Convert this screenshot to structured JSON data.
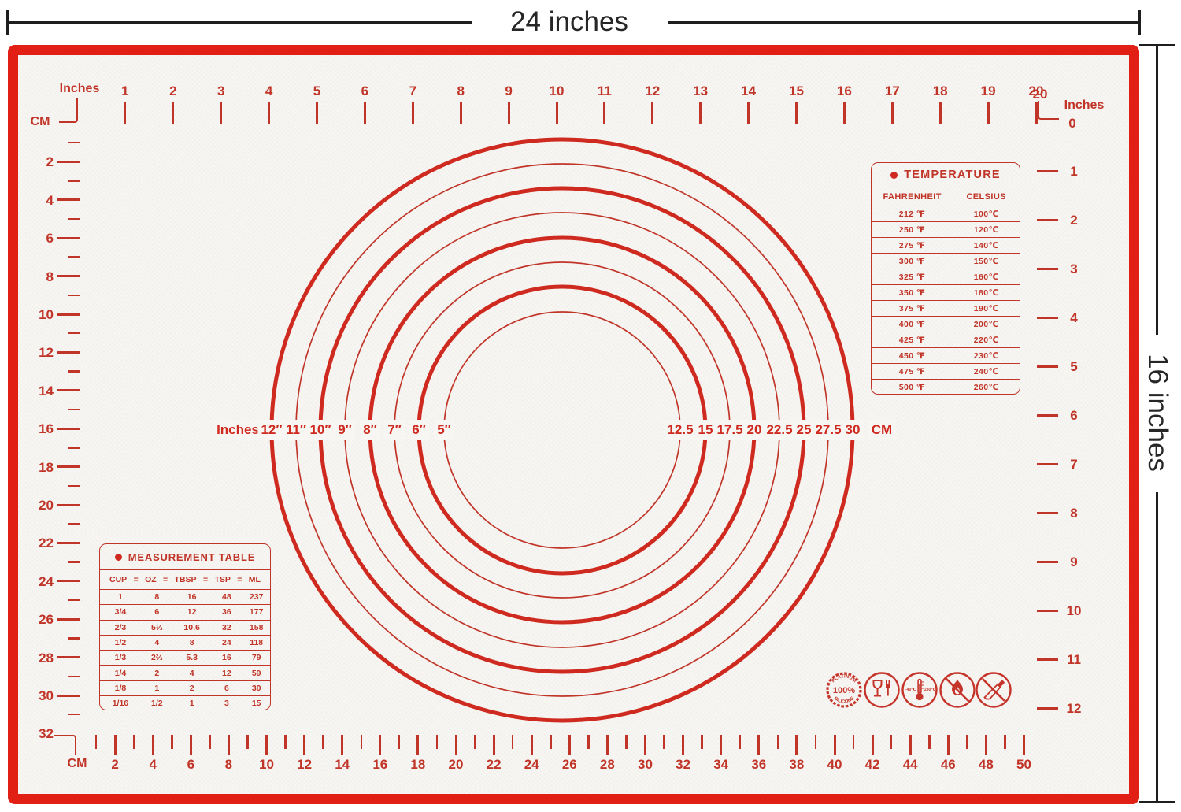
{
  "dimensions": {
    "width_label": "24 inches",
    "height_label": "16 inches"
  },
  "colors": {
    "mat_border": "#e11f14",
    "print_red": "#c13529",
    "accent_red": "#cf2a1f",
    "dimension_black": "#1e1e1e"
  },
  "top_ruler": {
    "unit": "Inches",
    "corner_unit": "CM",
    "labels": [
      "1",
      "2",
      "3",
      "4",
      "5",
      "6",
      "7",
      "8",
      "9",
      "10",
      "11",
      "12",
      "13",
      "14",
      "15",
      "16",
      "17",
      "18",
      "19",
      "20"
    ]
  },
  "left_ruler": {
    "labels": [
      "2",
      "4",
      "6",
      "8",
      "10",
      "12",
      "14",
      "16",
      "18",
      "20",
      "22",
      "24",
      "26",
      "28",
      "30",
      "32"
    ]
  },
  "right_ruler": {
    "end_number": "20",
    "unit": "Inches",
    "zero": "0",
    "labels": [
      "1",
      "2",
      "3",
      "4",
      "5",
      "6",
      "7",
      "8",
      "9",
      "10",
      "11",
      "12"
    ]
  },
  "bottom_ruler": {
    "unit": "CM",
    "labels": [
      "2",
      "4",
      "6",
      "8",
      "10",
      "12",
      "14",
      "16",
      "18",
      "20",
      "22",
      "24",
      "26",
      "28",
      "30",
      "32",
      "34",
      "36",
      "38",
      "40",
      "42",
      "44",
      "46",
      "48",
      "50"
    ]
  },
  "circles": {
    "left_unit": "Inches",
    "right_unit": "CM",
    "rings": [
      {
        "inches": "12″",
        "cm": "30",
        "radius": 369,
        "thick": true
      },
      {
        "inches": "11″",
        "cm": "27.5",
        "radius": 338,
        "thick": false
      },
      {
        "inches": "10″",
        "cm": "25",
        "radius": 307,
        "thick": true
      },
      {
        "inches": "9″",
        "cm": "22.5",
        "radius": 276,
        "thick": false
      },
      {
        "inches": "8″",
        "cm": "20",
        "radius": 244,
        "thick": true
      },
      {
        "inches": "7″",
        "cm": "17.5",
        "radius": 213,
        "thick": false
      },
      {
        "inches": "6″",
        "cm": "15",
        "radius": 182,
        "thick": true
      },
      {
        "inches": "5″",
        "cm": "12.5",
        "radius": 150,
        "thick": false
      }
    ]
  },
  "temperature_table": {
    "title": "TEMPERATURE",
    "columns": [
      "FAHRENHEIT",
      "CELSIUS"
    ],
    "rows": [
      [
        "212 ℉",
        "100℃"
      ],
      [
        "250 ℉",
        "120℃"
      ],
      [
        "275 ℉",
        "140℃"
      ],
      [
        "300 ℉",
        "150℃"
      ],
      [
        "325 ℉",
        "160℃"
      ],
      [
        "350 ℉",
        "180℃"
      ],
      [
        "375 ℉",
        "190℃"
      ],
      [
        "400 ℉",
        "200℃"
      ],
      [
        "425 ℉",
        "220℃"
      ],
      [
        "450 ℉",
        "230℃"
      ],
      [
        "475 ℉",
        "240℃"
      ],
      [
        "500 ℉",
        "260℃"
      ]
    ]
  },
  "measurement_table": {
    "title": "MEASUREMENT TABLE",
    "columns": [
      "CUP",
      "OZ",
      "TBSP",
      "TSP",
      "ML"
    ],
    "separator": "=",
    "rows": [
      [
        "1",
        "8",
        "16",
        "48",
        "237"
      ],
      [
        "3/4",
        "6",
        "12",
        "36",
        "177"
      ],
      [
        "2/3",
        "5⅓",
        "10.6",
        "32",
        "158"
      ],
      [
        "1/2",
        "4",
        "8",
        "24",
        "118"
      ],
      [
        "1/3",
        "2⅔",
        "5.3",
        "16",
        "79"
      ],
      [
        "1/4",
        "2",
        "4",
        "12",
        "59"
      ],
      [
        "1/8",
        "1",
        "2",
        "6",
        "30"
      ],
      [
        "1/16",
        "1/2",
        "1",
        "3",
        "15"
      ]
    ]
  },
  "icons": [
    {
      "name": "platinum-silicone-badge",
      "text_top": "PLATINUM",
      "text_center": "100%",
      "text_bottom": "SILICONE"
    },
    {
      "name": "food-safe-glass-fork"
    },
    {
      "name": "temperature-range-thermometer",
      "text_left": "-40℃",
      "text_right": "230℃"
    },
    {
      "name": "no-open-flame"
    },
    {
      "name": "no-sharp-knife"
    }
  ]
}
